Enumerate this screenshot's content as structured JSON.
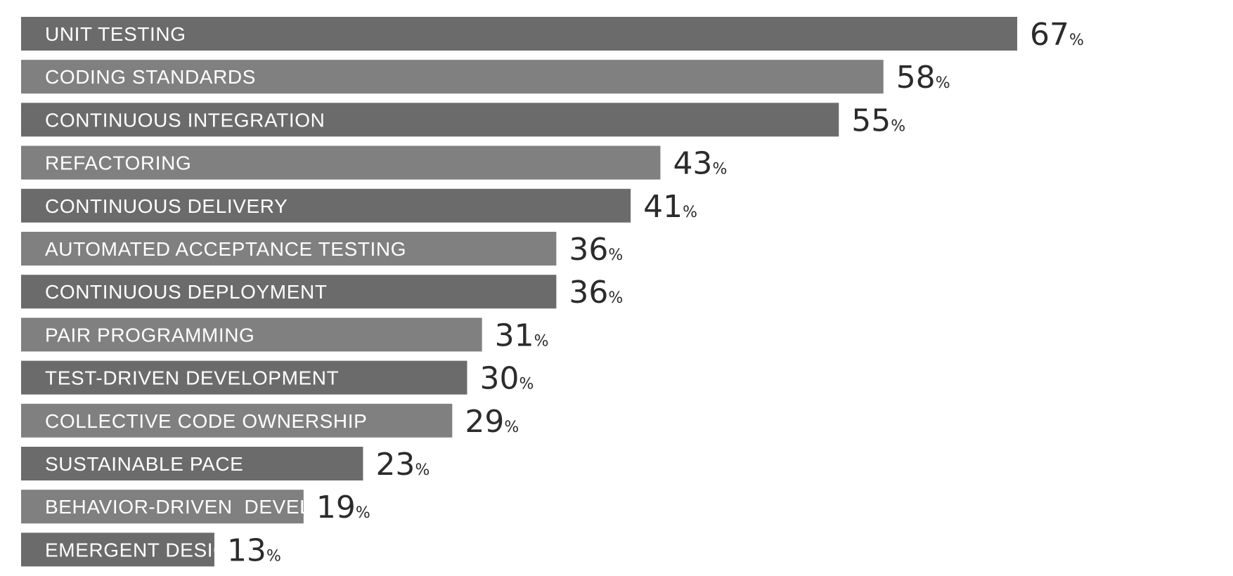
{
  "chart_data": {
    "type": "bar",
    "orientation": "horizontal",
    "categories": [
      "UNIT TESTING",
      "CODING STANDARDS",
      "CONTINUOUS INTEGRATION",
      "REFACTORING",
      "CONTINUOUS DELIVERY",
      "AUTOMATED ACCEPTANCE TESTING",
      "CONTINUOUS DEPLOYMENT",
      "PAIR PROGRAMMING",
      "TEST-DRIVEN DEVELOPMENT",
      "COLLECTIVE CODE OWNERSHIP",
      "SUSTAINABLE PACE",
      "BEHAVIOR-DRIVEN  DEVELOPMENT (BDD)",
      "EMERGENT DESIGN"
    ],
    "values": [
      67,
      58,
      55,
      43,
      41,
      36,
      36,
      31,
      30,
      29,
      23,
      19,
      13
    ],
    "unit": "%",
    "title": "",
    "xlabel": "",
    "ylabel": "",
    "grid": false,
    "bar_colors": [
      "#6b6b6b",
      "#808080"
    ]
  }
}
